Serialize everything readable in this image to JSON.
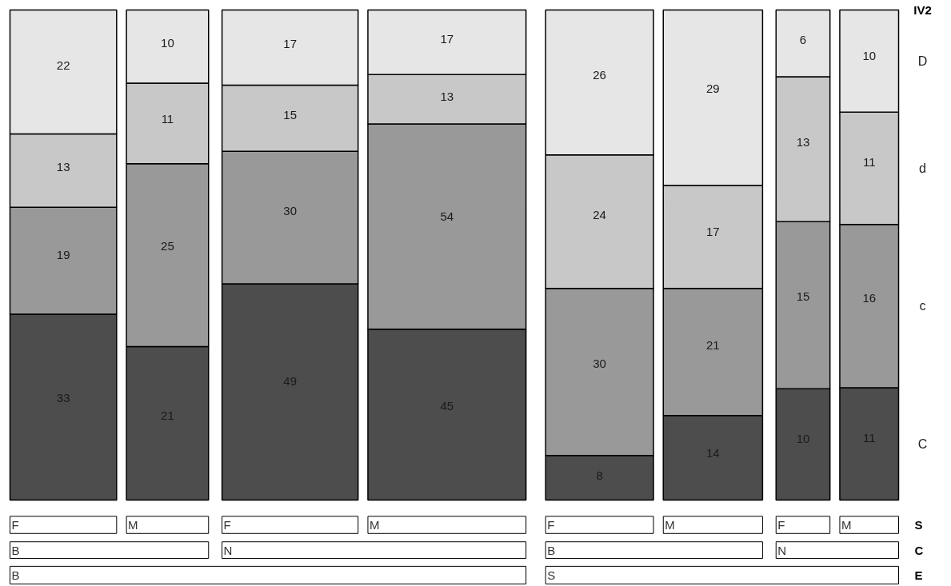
{
  "chart_data": {
    "type": "other",
    "data_labels": true,
    "categories": [
      "F",
      "M",
      "F",
      "M",
      "F",
      "M",
      "F",
      "M"
    ],
    "xlabel": "S",
    "legend_title": "IV2",
    "series": [
      {
        "name": "C",
        "color": "#4d4d4d",
        "values": [
          33,
          21,
          49,
          45,
          8,
          14,
          10,
          11
        ]
      },
      {
        "name": "c",
        "color": "#999999",
        "values": [
          19,
          25,
          30,
          54,
          30,
          21,
          15,
          16
        ]
      },
      {
        "name": "d",
        "color": "#c8c8c8",
        "values": [
          13,
          11,
          15,
          13,
          24,
          17,
          13,
          11
        ]
      },
      {
        "name": "D",
        "color": "#e6e6e6",
        "values": [
          22,
          10,
          17,
          17,
          26,
          29,
          6,
          10
        ]
      }
    ],
    "annotations": [
      "B",
      "N",
      "B",
      "N",
      "C",
      "B",
      "S",
      "E"
    ]
  }
}
